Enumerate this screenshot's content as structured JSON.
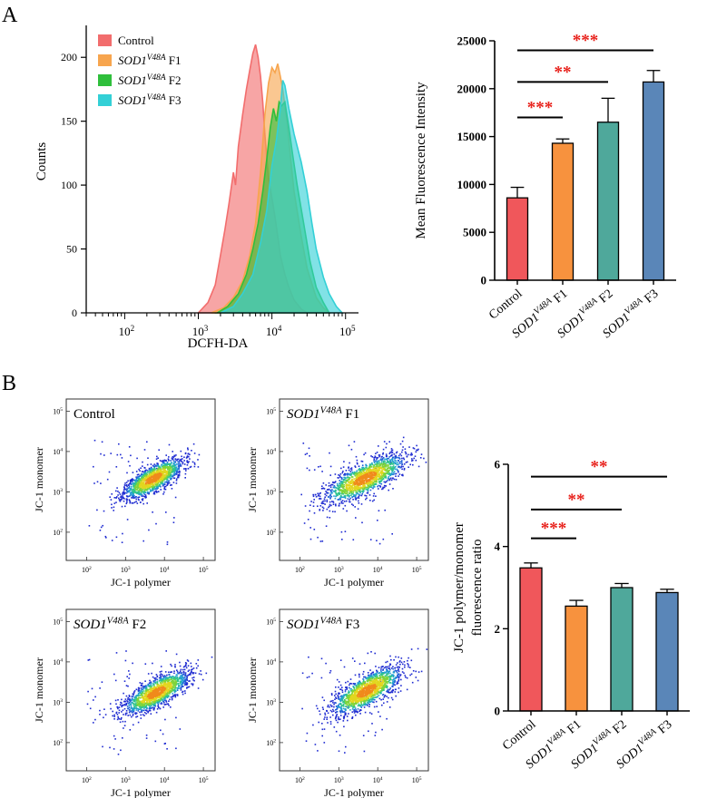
{
  "panels": {
    "a": "A",
    "b": "B"
  },
  "colors": {
    "control": "#f0575b",
    "f1": "#f7923e",
    "f2": "#4fa89b",
    "f3": "#5a86b8",
    "hist_control": "#f26d6d",
    "hist_f1": "#f7a54e",
    "hist_f2": "#2fbf3c",
    "hist_f3": "#33d0d6",
    "sig": "#e8211b"
  },
  "chart_data": [
    {
      "id": "histogram",
      "type": "area",
      "xlabel": "DCFH-DA",
      "ylabel": "Counts",
      "xscale": "log",
      "xlim": [
        30,
        150000
      ],
      "ylim": [
        0,
        225
      ],
      "x_ticks": [
        {
          "v": 100,
          "label": "10^2"
        },
        {
          "v": 1000,
          "label": "10^3"
        },
        {
          "v": 10000,
          "label": "10^4"
        },
        {
          "v": 100000,
          "label": "10^5"
        }
      ],
      "y_ticks": [
        0,
        50,
        100,
        150,
        200
      ],
      "legend": [
        {
          "italic": "",
          "sup": "",
          "rest": "Control",
          "color_key": "hist_control"
        },
        {
          "italic": "SOD1",
          "sup": "V48A",
          "rest": " F1",
          "color_key": "hist_f1"
        },
        {
          "italic": "SOD1",
          "sup": "V48A",
          "rest": " F2",
          "color_key": "hist_f2"
        },
        {
          "italic": "SOD1",
          "sup": "V48A",
          "rest": " F3",
          "color_key": "hist_f3"
        }
      ],
      "series": [
        {
          "name": "Control",
          "color_key": "hist_control",
          "points": [
            [
              1000,
              0
            ],
            [
              1350,
              8
            ],
            [
              1700,
              22
            ],
            [
              2000,
              45
            ],
            [
              2300,
              65
            ],
            [
              2600,
              85
            ],
            [
              3000,
              110
            ],
            [
              3200,
              100
            ],
            [
              3500,
              130
            ],
            [
              4000,
              155
            ],
            [
              4500,
              175
            ],
            [
              5000,
              190
            ],
            [
              5500,
              203
            ],
            [
              6000,
              210
            ],
            [
              6500,
              200
            ],
            [
              7000,
              185
            ],
            [
              7500,
              165
            ],
            [
              8000,
              140
            ],
            [
              9000,
              105
            ],
            [
              10000,
              90
            ],
            [
              11000,
              75
            ],
            [
              12000,
              60
            ],
            [
              13000,
              45
            ],
            [
              15000,
              30
            ],
            [
              17000,
              20
            ],
            [
              20000,
              10
            ],
            [
              25000,
              3
            ],
            [
              30000,
              0
            ]
          ]
        },
        {
          "name": "SOD1V48A F1",
          "color_key": "hist_f1",
          "points": [
            [
              1500,
              0
            ],
            [
              2200,
              4
            ],
            [
              3000,
              12
            ],
            [
              4000,
              25
            ],
            [
              5000,
              45
            ],
            [
              6000,
              70
            ],
            [
              7000,
              110
            ],
            [
              8000,
              155
            ],
            [
              9000,
              180
            ],
            [
              10000,
              192
            ],
            [
              11000,
              188
            ],
            [
              12000,
              195
            ],
            [
              13000,
              185
            ],
            [
              14000,
              175
            ],
            [
              16000,
              150
            ],
            [
              18000,
              120
            ],
            [
              20000,
              95
            ],
            [
              25000,
              60
            ],
            [
              30000,
              35
            ],
            [
              40000,
              12
            ],
            [
              50000,
              4
            ],
            [
              60000,
              0
            ]
          ]
        },
        {
          "name": "SOD1V48A F2",
          "color_key": "hist_f2",
          "points": [
            [
              1800,
              0
            ],
            [
              2500,
              5
            ],
            [
              3500,
              15
            ],
            [
              4500,
              30
            ],
            [
              5500,
              50
            ],
            [
              6500,
              70
            ],
            [
              7500,
              95
            ],
            [
              8500,
              120
            ],
            [
              9500,
              145
            ],
            [
              10500,
              160
            ],
            [
              11500,
              150
            ],
            [
              12500,
              165
            ],
            [
              13500,
              162
            ],
            [
              15000,
              165
            ],
            [
              17000,
              145
            ],
            [
              19000,
              125
            ],
            [
              22000,
              100
            ],
            [
              27000,
              70
            ],
            [
              33000,
              40
            ],
            [
              40000,
              20
            ],
            [
              50000,
              8
            ],
            [
              60000,
              0
            ]
          ]
        },
        {
          "name": "SOD1V48A F3",
          "color_key": "hist_f3",
          "points": [
            [
              2000,
              0
            ],
            [
              3000,
              5
            ],
            [
              4000,
              15
            ],
            [
              5500,
              30
            ],
            [
              7000,
              55
            ],
            [
              8500,
              80
            ],
            [
              10000,
              115
            ],
            [
              11500,
              135
            ],
            [
              13000,
              160
            ],
            [
              14000,
              182
            ],
            [
              15000,
              178
            ],
            [
              17000,
              160
            ],
            [
              20000,
              140
            ],
            [
              25000,
              118
            ],
            [
              30000,
              95
            ],
            [
              35000,
              70
            ],
            [
              40000,
              50
            ],
            [
              50000,
              28
            ],
            [
              60000,
              15
            ],
            [
              75000,
              5
            ],
            [
              90000,
              0
            ]
          ]
        }
      ]
    },
    {
      "id": "mfi_bar",
      "type": "bar",
      "ylabel": "Mean Fluorescence Intensity",
      "ylim": [
        0,
        25000
      ],
      "y_ticks": [
        0,
        5000,
        10000,
        15000,
        20000,
        25000
      ],
      "categories": [
        {
          "italic": "",
          "sup": "",
          "rest": "Control"
        },
        {
          "italic": "SOD1",
          "sup": "V48A",
          "rest": " F1"
        },
        {
          "italic": "SOD1",
          "sup": "V48A",
          "rest": " F2"
        },
        {
          "italic": "SOD1",
          "sup": "V48A",
          "rest": " F3"
        }
      ],
      "values": [
        8600,
        14300,
        16500,
        20700
      ],
      "errors": [
        1100,
        450,
        2500,
        1200
      ],
      "color_keys": [
        "control",
        "f1",
        "f2",
        "f3"
      ],
      "significance": [
        {
          "from": 0,
          "to": 1,
          "label": "***",
          "level": 17000
        },
        {
          "from": 0,
          "to": 2,
          "label": "**",
          "level": 20700
        },
        {
          "from": 0,
          "to": 3,
          "label": "***",
          "level": 24000
        }
      ]
    },
    {
      "id": "jc1_scatter",
      "type": "scatter",
      "xlabel": "JC-1  polymer",
      "ylabel": "JC-1 monomer",
      "xscale": "log",
      "yscale": "log",
      "xlim": [
        30,
        200000
      ],
      "ylim": [
        20,
        200000
      ],
      "x_ticks": [
        {
          "v": 100,
          "label": "10^2"
        },
        {
          "v": 1000,
          "label": "10^3"
        },
        {
          "v": 10000,
          "label": "10^4"
        },
        {
          "v": 100000,
          "label": "10^5"
        }
      ],
      "y_ticks": [
        {
          "v": 100,
          "label": "10^2"
        },
        {
          "v": 1000,
          "label": "10^3"
        },
        {
          "v": 10000,
          "label": "10^4"
        },
        {
          "v": 100000,
          "label": "10^5"
        }
      ],
      "panels": [
        {
          "italic": "",
          "sup": "",
          "rest": "Control",
          "center": [
            5000,
            2200
          ],
          "spread": [
            0.38,
            0.3
          ],
          "seed": 11
        },
        {
          "italic": "SOD1",
          "sup": "V48A",
          "rest": " F1",
          "center": [
            4500,
            2200
          ],
          "spread": [
            0.52,
            0.36
          ],
          "seed": 23
        },
        {
          "italic": "SOD1",
          "sup": "V48A",
          "rest": " F2",
          "center": [
            6000,
            1800
          ],
          "spread": [
            0.42,
            0.32
          ],
          "seed": 37
        },
        {
          "italic": "SOD1",
          "sup": "V48A",
          "rest": " F3",
          "center": [
            5000,
            2000
          ],
          "spread": [
            0.45,
            0.36
          ],
          "seed": 49
        }
      ]
    },
    {
      "id": "jc1_bar",
      "type": "bar",
      "ylabel_lines": [
        "JC-1  polymer/monomer",
        "fluorescence ratio"
      ],
      "ylim": [
        0,
        6
      ],
      "y_ticks": [
        0,
        2,
        4,
        6
      ],
      "categories": [
        {
          "italic": "",
          "sup": "",
          "rest": "Control"
        },
        {
          "italic": "SOD1",
          "sup": "V48A",
          "rest": " F1"
        },
        {
          "italic": "SOD1",
          "sup": "V48A",
          "rest": " F2"
        },
        {
          "italic": "SOD1",
          "sup": "V48A",
          "rest": " F3"
        }
      ],
      "values": [
        3.48,
        2.55,
        3.0,
        2.88
      ],
      "errors": [
        0.12,
        0.14,
        0.1,
        0.08
      ],
      "color_keys": [
        "control",
        "f1",
        "f2",
        "f3"
      ],
      "significance": [
        {
          "from": 0,
          "to": 1,
          "label": "***",
          "level": 4.2
        },
        {
          "from": 0,
          "to": 2,
          "label": "**",
          "level": 4.9
        },
        {
          "from": 0,
          "to": 3,
          "label": "**",
          "level": 5.7
        }
      ]
    }
  ]
}
